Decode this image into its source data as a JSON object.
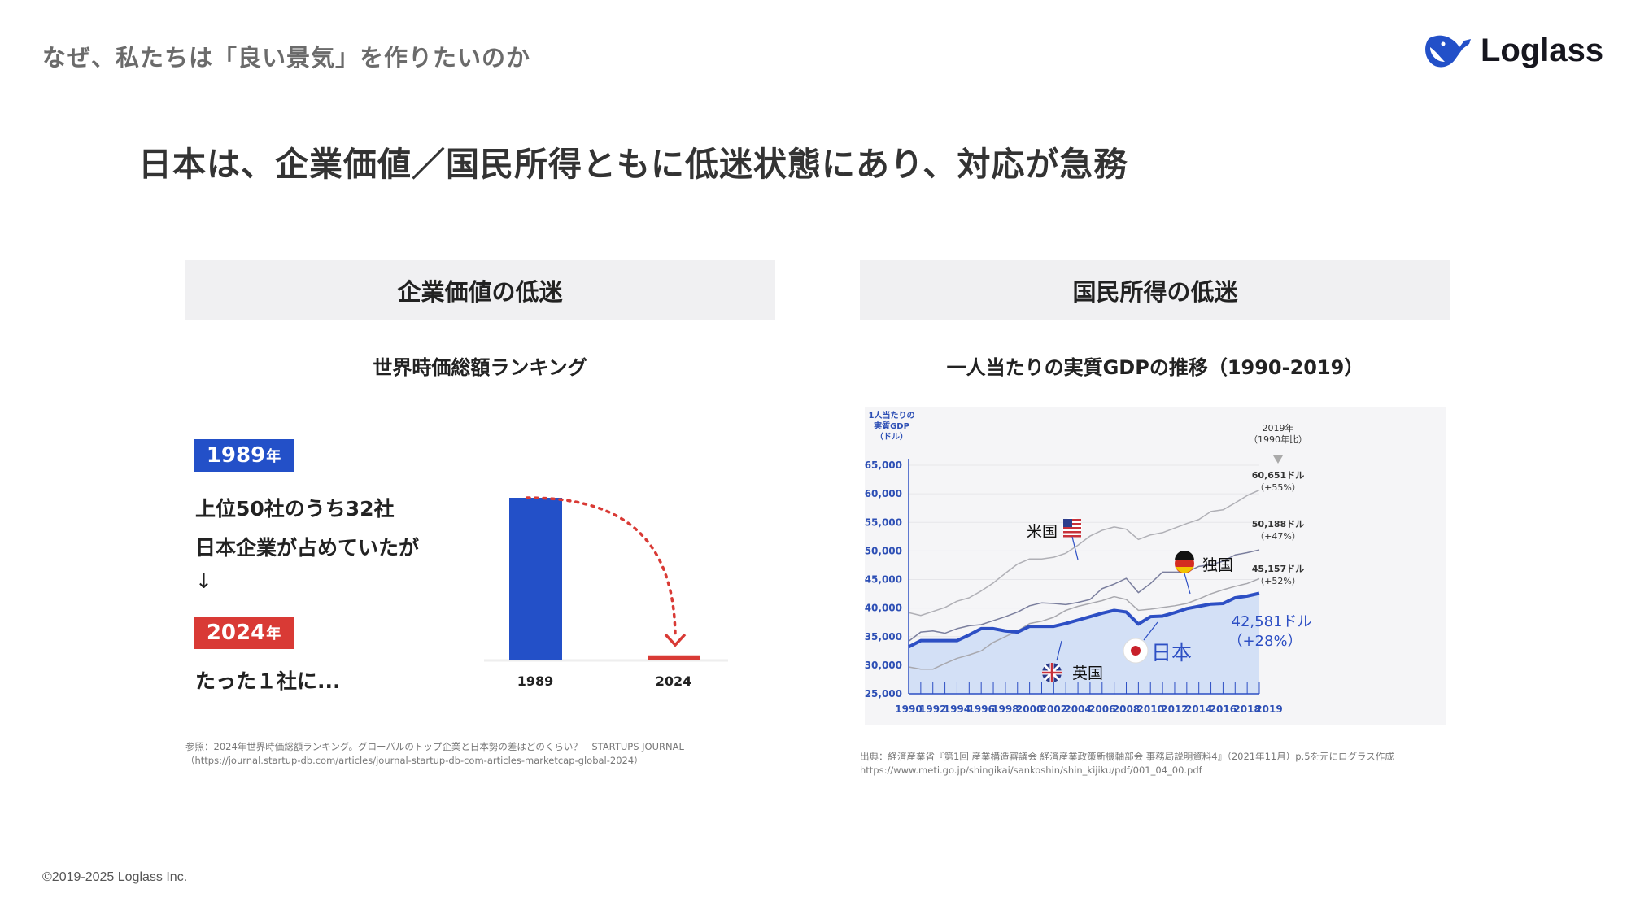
{
  "header": {
    "section_title": "なぜ、私たちは「良い景気」を作りたいのか",
    "logo_text": "Loglass"
  },
  "main_title": "日本は、企業価値／国民所得ともに低迷状態にあり、対応が急務",
  "left_panel": {
    "heading": "企業価値の低迷",
    "subtitle": "世界時価総額ランキング",
    "badge_1989": {
      "year": "1989",
      "suffix": "年"
    },
    "line1": "上位50社のうち32社",
    "line2": "日本企業が占めていたが",
    "arrow": "↓",
    "badge_2024": {
      "year": "2024",
      "suffix": "年"
    },
    "line3": "たった１社に...",
    "source_line1": "参照：2024年世界時価総額ランキング。グローバルのトップ企業と日本勢の差はどのくらい？｜STARTUPS JOURNAL",
    "source_line2": "（https://journal.startup-db.com/articles/journal-startup-db-com-articles-marketcap-global-2024）"
  },
  "right_panel": {
    "heading": "国民所得の低迷",
    "subtitle": "一人当たりの実質GDPの推移（1990-2019）",
    "source_line1": "出典：経済産業省『第1回 産業構造審議会 経済産業政策新機軸部会 事務局説明資料4』（2021年11月）p.5を元にログラス作成",
    "source_line2": "https://www.meti.go.jp/shingikai/sankoshin/shin_kijiku/pdf/001_04_00.pdf"
  },
  "footer": "©2019-2025 Loglass Inc.",
  "colors": {
    "brand_blue": "#2350c8",
    "red": "#d93a35",
    "panel_bg": "#f0f0f2",
    "chart_bg": "#f5f5f7",
    "japan_fill": "#d3e0f6"
  },
  "chart_data": [
    {
      "type": "bar",
      "categories": [
        "1989",
        "2024"
      ],
      "values": [
        32,
        1
      ],
      "colors": [
        "#2350c8",
        "#d93a35"
      ],
      "annotation": "dotted red arrow from 1989 bar top down to 2024 bar"
    },
    {
      "type": "line",
      "ylabel": [
        "1人当たりの",
        "実質GDP",
        "（ドル）"
      ],
      "ylim": [
        25000,
        65000
      ],
      "yticks": [
        "25,000",
        "30,000",
        "35,000",
        "40,000",
        "45,000",
        "50,000",
        "55,000",
        "60,000",
        "65,000"
      ],
      "xticks": [
        "1990",
        "1992",
        "1994",
        "1996",
        "1998",
        "2000",
        "2002",
        "2004",
        "2006",
        "2008",
        "2010",
        "2012",
        "2014",
        "2016",
        "2018",
        "2019"
      ],
      "x": [
        1990,
        1991,
        1992,
        1993,
        1994,
        1995,
        1996,
        1997,
        1998,
        1999,
        2000,
        2001,
        2002,
        2003,
        2004,
        2005,
        2006,
        2007,
        2008,
        2009,
        2010,
        2011,
        2012,
        2013,
        2014,
        2015,
        2016,
        2017,
        2018,
        2019
      ],
      "grid": true,
      "header_note": [
        "2019年",
        "（1990年比）"
      ],
      "series": [
        {
          "name": "米国",
          "color": "#b0b0b6",
          "end_label": "60,651ドル",
          "change": "（+55%）",
          "values": [
            39200,
            38700,
            39400,
            40100,
            41200,
            41800,
            43000,
            44400,
            46100,
            47700,
            48600,
            48600,
            48900,
            49600,
            51000,
            52600,
            53600,
            54200,
            53800,
            52000,
            52800,
            53200,
            54000,
            54800,
            55500,
            56900,
            57200,
            58400,
            59700,
            60651
          ]
        },
        {
          "name": "独国",
          "color": "#7b7f9e",
          "end_label": "50,188ドル",
          "change": "（+47%）",
          "values": [
            34200,
            35800,
            36000,
            35600,
            36400,
            36900,
            37100,
            37800,
            38500,
            39300,
            40400,
            40900,
            40800,
            40600,
            41000,
            41500,
            43400,
            44200,
            45200,
            42700,
            44300,
            46300,
            46300,
            46300,
            47300,
            47600,
            48200,
            49300,
            49700,
            50188
          ]
        },
        {
          "name": "英国",
          "color": "#a8a8ae",
          "end_label": "45,157ドル",
          "change": "（+52%）",
          "values": [
            29700,
            29300,
            29300,
            30300,
            31200,
            31800,
            32500,
            34000,
            35000,
            36000,
            37300,
            37700,
            38400,
            39600,
            40300,
            40800,
            41300,
            42000,
            41500,
            39600,
            39800,
            40100,
            40400,
            40800,
            41600,
            42500,
            43200,
            43800,
            44300,
            45157
          ]
        },
        {
          "name": "日本",
          "color": "#2d4fc4",
          "end_label": "42,581ドル",
          "change": "（+28%）",
          "values": [
            33200,
            34300,
            34300,
            34300,
            34300,
            35300,
            36400,
            36400,
            36000,
            35800,
            36800,
            36800,
            36800,
            37300,
            37900,
            38500,
            39100,
            39600,
            39300,
            37200,
            38500,
            38600,
            39200,
            39900,
            40300,
            40700,
            40800,
            41800,
            42100,
            42581
          ]
        }
      ]
    }
  ]
}
